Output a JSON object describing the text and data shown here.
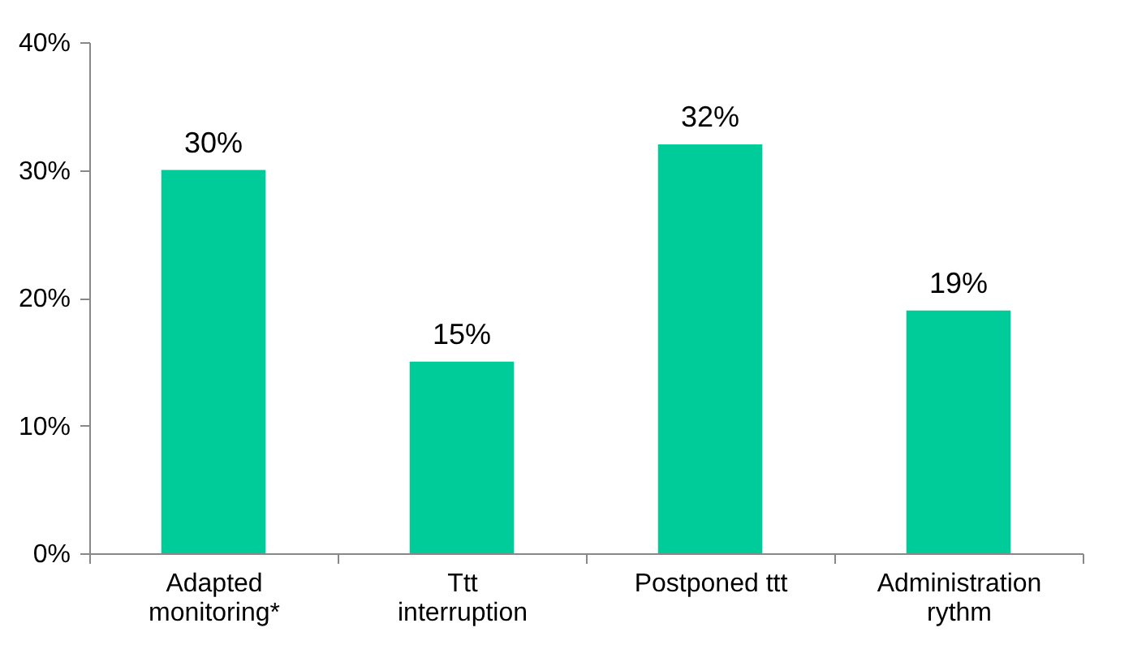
{
  "chart_data": {
    "type": "bar",
    "categories": [
      "Adapted monitoring*",
      "Ttt interruption",
      "Postponed ttt",
      "Administration rythm"
    ],
    "values": [
      30,
      15,
      32,
      19
    ],
    "color": "#00cc99",
    "value_labels": [
      "30%",
      "15%",
      "32%",
      "19%"
    ],
    "ylim": [
      0,
      40
    ],
    "yticks": [
      {
        "value": 0,
        "label": "0%"
      },
      {
        "value": 10,
        "label": "10%"
      },
      {
        "value": 20,
        "label": "20%"
      },
      {
        "value": 30,
        "label": "30%"
      },
      {
        "value": 40,
        "label": "40%"
      }
    ]
  }
}
